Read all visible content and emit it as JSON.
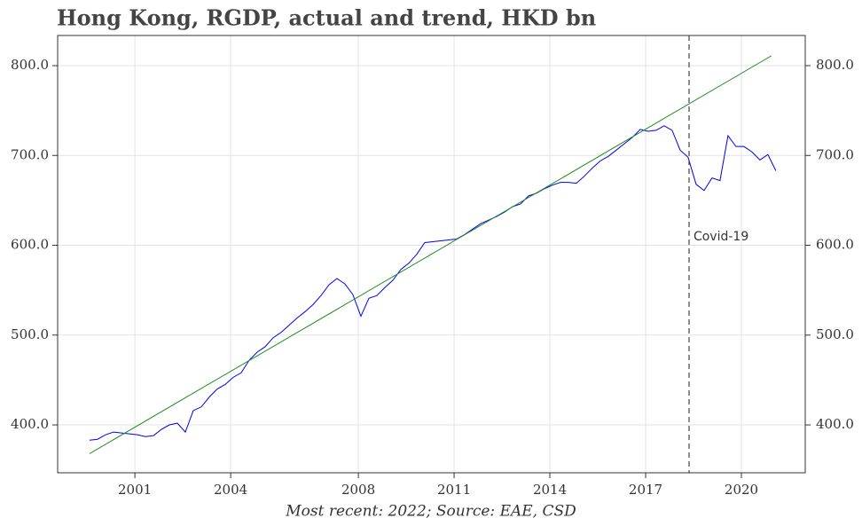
{
  "chart_data": {
    "type": "line",
    "title": "Hong Kong, RGDP, actual and trend, HKD bn",
    "footnote": "Most recent: 2022; Source: EAE, CSD",
    "annotation": {
      "text": "Covid-19",
      "x": 2018.36
    },
    "xlim": [
      1998.58,
      2022.0
    ],
    "xticks": [
      2001,
      2004,
      2008,
      2011,
      2014,
      2017,
      2020
    ],
    "ylim": [
      346.7,
      833.6
    ],
    "yticks": [
      {
        "value": 400,
        "label": "400.0"
      },
      {
        "value": 500,
        "label": "500.0"
      },
      {
        "value": 600,
        "label": "600.0"
      },
      {
        "value": 700,
        "label": "700.0"
      },
      {
        "value": 800,
        "label": "800.0"
      }
    ],
    "y2lim": [
      346.7,
      833.6
    ],
    "y2ticks": [
      {
        "value": 400,
        "label": "400.0"
      },
      {
        "value": 500,
        "label": "500.0"
      },
      {
        "value": 600,
        "label": "600.0"
      },
      {
        "value": 700,
        "label": "700.0"
      },
      {
        "value": 800,
        "label": "800.0"
      }
    ],
    "grid": true,
    "series": [
      {
        "color": "#0000ee",
        "x": [
          1999.58,
          1999.83,
          2000.08,
          2000.33,
          2000.58,
          2000.83,
          2001.08,
          2001.33,
          2001.58,
          2001.83,
          2002.08,
          2002.33,
          2002.58,
          2002.83,
          2003.08,
          2003.33,
          2003.58,
          2003.83,
          2004.08,
          2004.33,
          2004.58,
          2004.83,
          2005.08,
          2005.33,
          2005.58,
          2005.83,
          2006.08,
          2006.33,
          2006.58,
          2006.83,
          2007.08,
          2007.33,
          2007.58,
          2007.83,
          2008.08,
          2008.33,
          2008.58,
          2008.83,
          2009.08,
          2009.33,
          2009.58,
          2009.83,
          2010.08,
          2010.33,
          2010.58,
          2010.83,
          2011.08,
          2011.33,
          2011.58,
          2011.83,
          2012.08,
          2012.33,
          2012.58,
          2012.83,
          2013.08,
          2013.33,
          2013.58,
          2013.83,
          2014.08,
          2014.33,
          2014.58,
          2014.83,
          2015.08,
          2015.33,
          2015.58,
          2015.83,
          2016.08,
          2016.33,
          2016.58,
          2016.83,
          2017.08,
          2017.33,
          2017.58,
          2017.83,
          2018.08,
          2018.33,
          2018.58,
          2018.83,
          2019.08,
          2019.33,
          2019.58,
          2019.83,
          2020.08,
          2020.33,
          2020.58,
          2020.83,
          2021.08
        ],
        "values": [
          383,
          384,
          389,
          392,
          391,
          390,
          389,
          387,
          388,
          395,
          400,
          402,
          392,
          416,
          420,
          431,
          440,
          445,
          453,
          458,
          472,
          481,
          487,
          497,
          503,
          511,
          519,
          526,
          534,
          544,
          556,
          563,
          557,
          545,
          521,
          541,
          544,
          553,
          561,
          573,
          580,
          590,
          603,
          604,
          605,
          606,
          607,
          612,
          618,
          624,
          628,
          632,
          637,
          643,
          646,
          655,
          658,
          663,
          667,
          670,
          670,
          669,
          677,
          686,
          694,
          699,
          706,
          713,
          720,
          729,
          727,
          728,
          733,
          728,
          706,
          698,
          668,
          661,
          675,
          672,
          722,
          710,
          710,
          704,
          695,
          701,
          683
        ]
      },
      {
        "color": "#228b22",
        "x": [
          1999.58,
          2020.94
        ],
        "values": [
          368,
          811
        ]
      }
    ]
  }
}
